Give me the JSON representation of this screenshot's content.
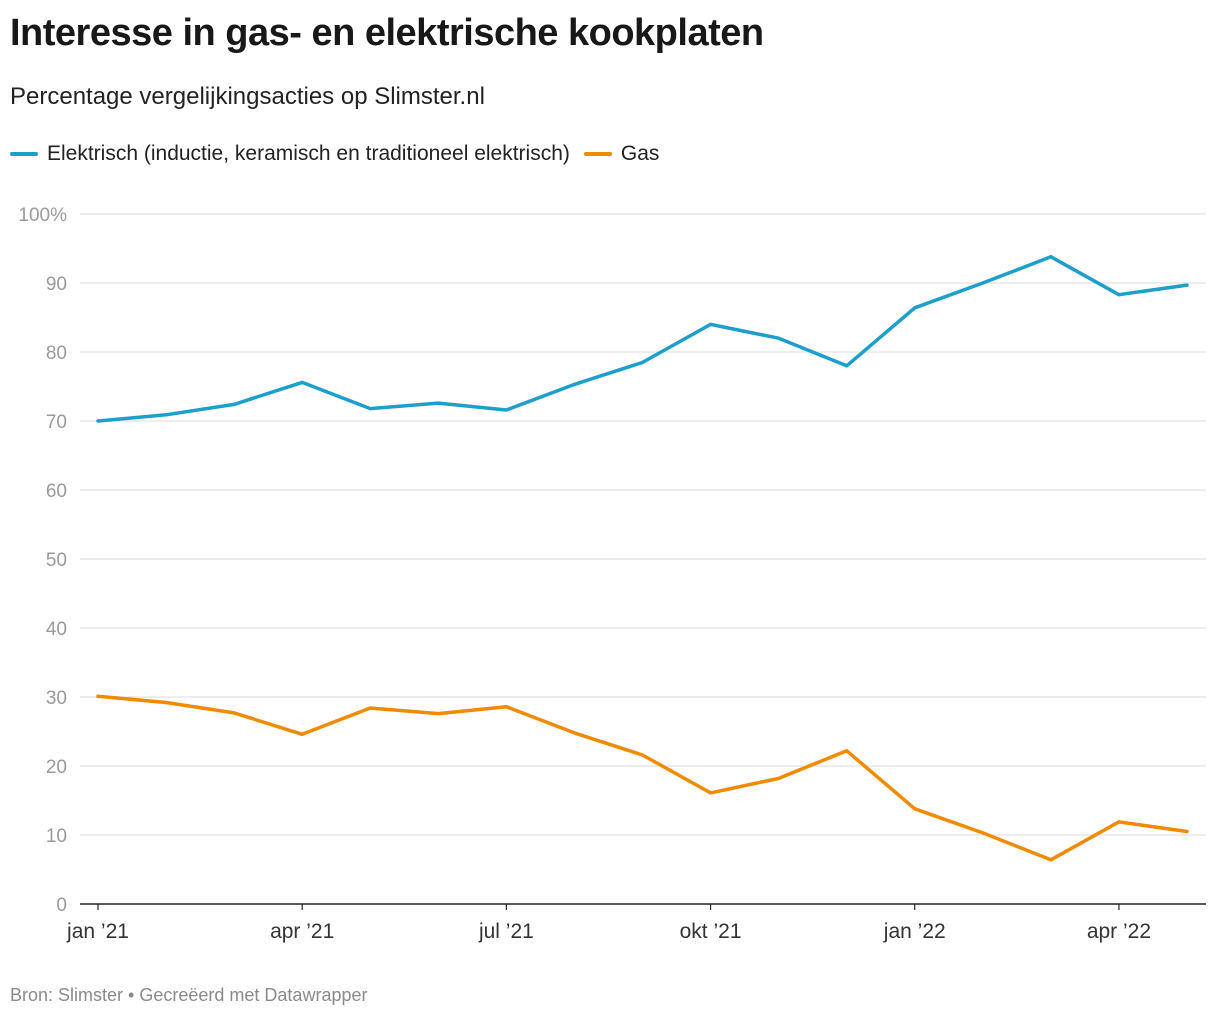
{
  "title": "Interesse in gas- en elektrische kookplaten",
  "subtitle": "Percentage vergelijkingsacties op Slimster.nl",
  "footer": {
    "source": "Bron: Slimster",
    "separator": "•",
    "credit": "Gecreëerd met Datawrapper"
  },
  "chart_data": {
    "type": "line",
    "title": "Interesse in gas- en elektrische kookplaten",
    "subtitle": "Percentage vergelijkingsacties op Slimster.nl",
    "xlabel": "",
    "ylabel": "",
    "x": [
      "2021-01",
      "2021-02",
      "2021-03",
      "2021-04",
      "2021-05",
      "2021-06",
      "2021-07",
      "2021-08",
      "2021-09",
      "2021-10",
      "2021-11",
      "2021-12",
      "2022-01",
      "2022-02",
      "2022-03",
      "2022-04",
      "2022-05"
    ],
    "x_tick_labels": [
      "jan ’21",
      "apr ’21",
      "jul ’21",
      "okt ’21",
      "jan ’22",
      "apr ’22"
    ],
    "x_tick_values": [
      "2021-01",
      "2021-04",
      "2021-07",
      "2021-10",
      "2022-01",
      "2022-04"
    ],
    "y_tick_labels": [
      "0",
      "10",
      "20",
      "30",
      "40",
      "50",
      "60",
      "70",
      "80",
      "90",
      "100%"
    ],
    "y_tick_values": [
      0,
      10,
      20,
      30,
      40,
      50,
      60,
      70,
      80,
      90,
      100
    ],
    "ylim": [
      0,
      100
    ],
    "grid": true,
    "legend": "top-left",
    "series": [
      {
        "name": "Elektrisch (inductie, keramisch en traditioneel elektrisch)",
        "color": "#1d9fcb",
        "values": [
          70.0,
          70.9,
          72.4,
          75.6,
          71.8,
          72.6,
          71.6,
          75.3,
          78.5,
          84.0,
          82.0,
          78.0,
          86.4,
          90.0,
          93.8,
          88.3,
          89.7
        ]
      },
      {
        "name": "Gas",
        "color": "#f08b00",
        "values": [
          30.1,
          29.2,
          27.7,
          24.6,
          28.4,
          27.6,
          28.6,
          24.8,
          21.6,
          16.1,
          18.2,
          22.2,
          13.8,
          10.3,
          6.4,
          11.9,
          10.5
        ]
      }
    ]
  }
}
